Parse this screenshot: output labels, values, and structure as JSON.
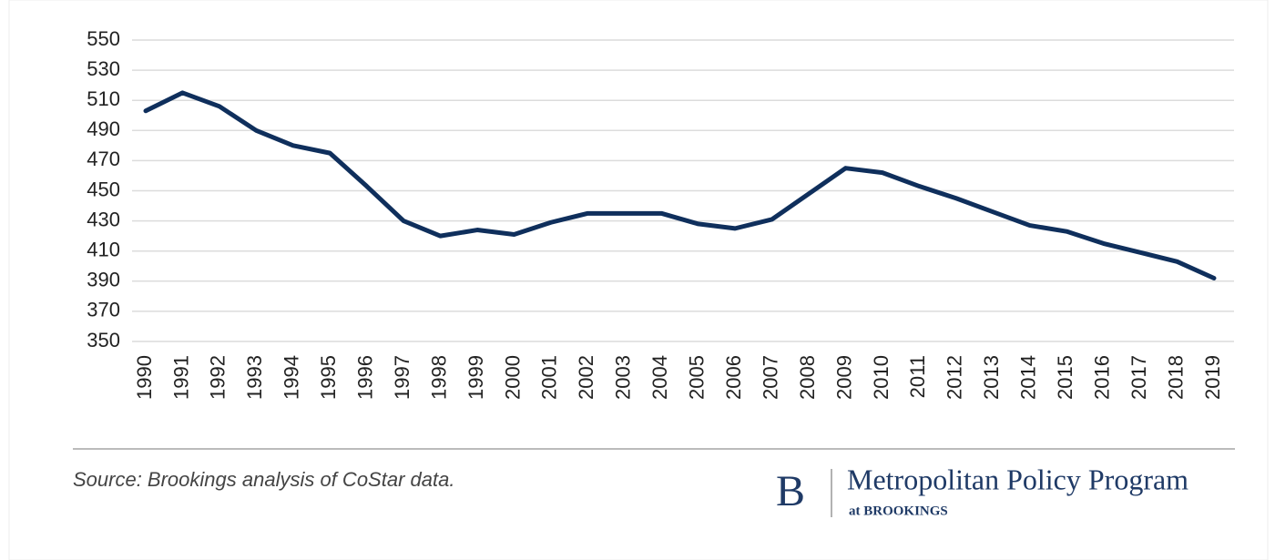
{
  "chart_data": {
    "type": "line",
    "x": [
      1990,
      1991,
      1992,
      1993,
      1994,
      1995,
      1996,
      1997,
      1998,
      1999,
      2000,
      2001,
      2002,
      2003,
      2004,
      2005,
      2006,
      2007,
      2008,
      2009,
      2010,
      2011,
      2012,
      2013,
      2014,
      2015,
      2016,
      2017,
      2018,
      2019
    ],
    "series": [
      {
        "color": "#0f2f5c",
        "values": [
          503,
          515,
          506,
          490,
          480,
          475,
          453,
          430,
          420,
          424,
          421,
          429,
          435,
          435,
          435,
          428,
          425,
          431,
          448,
          465,
          462,
          453,
          445,
          436,
          427,
          423,
          415,
          409,
          403,
          392
        ]
      }
    ],
    "xlim": [
      1990,
      2019
    ],
    "ylim": [
      350,
      550
    ],
    "yticks": [
      350,
      370,
      390,
      410,
      430,
      450,
      470,
      490,
      510,
      530,
      550
    ],
    "grid": true,
    "source": "Source: Brookings analysis of CoStar data.",
    "logo": {
      "mark": "B",
      "name": "Metropolitan Policy Program",
      "sub": "at BROOKINGS"
    }
  }
}
